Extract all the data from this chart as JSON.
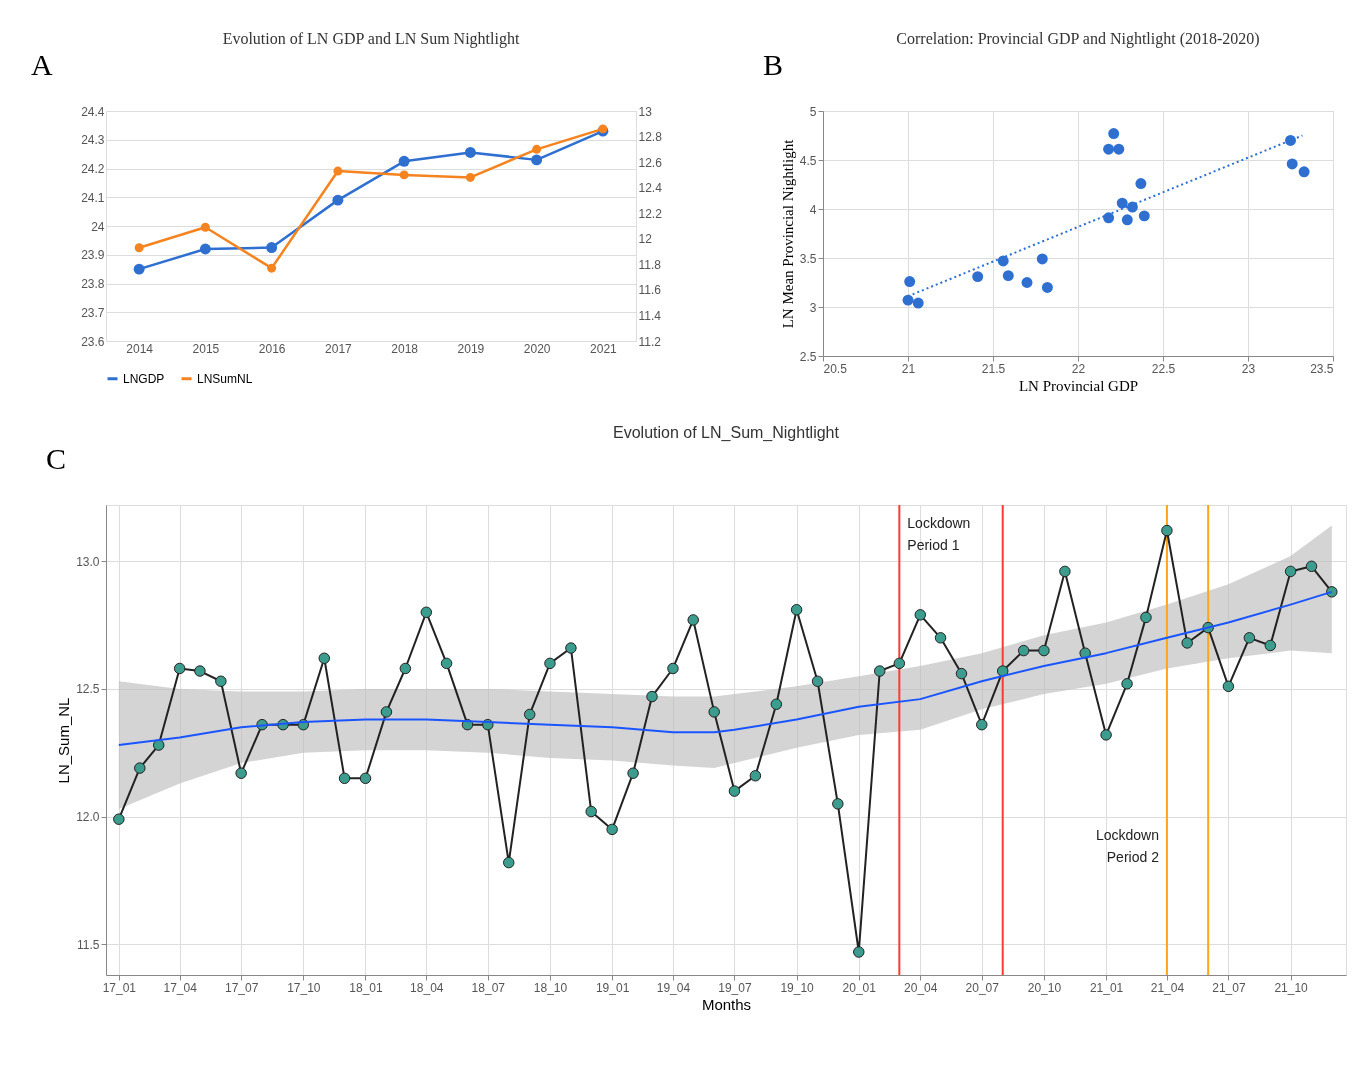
{
  "chart_data": [
    {
      "type": "line",
      "title": "Evolution of LN GDP and LN Sum Nightlight",
      "annotations": [
        "A"
      ],
      "categories": [
        "2014",
        "2015",
        "2016",
        "2017",
        "2018",
        "2019",
        "2020",
        "2021"
      ],
      "series": [
        {
          "name": "LNGDP",
          "color": "#2e6fd0",
          "values": [
            23.85,
            23.92,
            23.925,
            24.09,
            24.225,
            24.256,
            24.23,
            24.33
          ]
        },
        {
          "name": "LNSumNL",
          "color": "#f5831f",
          "axis": "y2",
          "values": [
            11.93,
            12.09,
            11.77,
            12.53,
            12.5,
            12.48,
            12.7,
            12.86
          ]
        }
      ],
      "ylim": [
        23.6,
        24.4
      ],
      "yticks": [
        23.6,
        23.7,
        23.8,
        23.9,
        24,
        24.1,
        24.2,
        24.3,
        24.4
      ],
      "y2lim": [
        11.2,
        13
      ],
      "y2ticks": [
        11.2,
        11.4,
        11.6,
        11.8,
        12,
        12.2,
        12.4,
        12.6,
        12.8,
        13
      ],
      "grid": "y",
      "legend": "bottom",
      "marker": "circle",
      "line_style": "solid"
    },
    {
      "type": "scatter",
      "title": "Correlation: Provincial GDP and Nightlight (2018-2020)",
      "annotations": [
        "B"
      ],
      "xlabel": "LN Provincial GDP",
      "ylabel": "LN Mean Provincial Nightlight",
      "series": [
        {
          "color": "#2e6fd0",
          "x": [
            21.01,
            21.0,
            21.06,
            21.41,
            21.56,
            21.59,
            21.7,
            21.79,
            21.82,
            22.18,
            22.21,
            22.24,
            22.18,
            22.26,
            22.29,
            22.32,
            22.37,
            22.39,
            23.25,
            23.26,
            23.33
          ],
          "values": [
            3.26,
            3.07,
            3.04,
            3.31,
            3.47,
            3.32,
            3.25,
            3.49,
            3.2,
            4.61,
            4.77,
            4.61,
            3.91,
            4.06,
            3.89,
            4.02,
            4.26,
            3.93,
            4.7,
            4.46,
            4.38
          ]
        },
        {
          "type": "line",
          "color": "#2e6fd0",
          "line_style": "dotted",
          "marker": "none",
          "x": [
            21.0,
            23.32
          ],
          "values": [
            3.11,
            4.75
          ]
        }
      ],
      "xlim": [
        20.5,
        23.5
      ],
      "xticks": [
        20.5,
        21,
        21.5,
        22,
        22.5,
        23,
        23.5
      ],
      "ylim": [
        2.5,
        5
      ],
      "yticks": [
        2.5,
        3,
        3.5,
        4,
        4.5,
        5
      ],
      "grid": true,
      "marker": "circle"
    },
    {
      "type": "line",
      "title": "Evolution of LN_Sum_Nightlight",
      "xlabel": "Months",
      "ylabel": "LN_Sum_NL",
      "annotations": [
        "C"
      ],
      "series": [
        {
          "color": "#3c9d8f",
          "marker": "circle",
          "x": [
            "2017-01",
            "2017-02",
            "2017-03",
            "2017-04",
            "2017-05",
            "2017-06",
            "2017-07",
            "2017-08",
            "2017-09",
            "2017-10",
            "2017-11",
            "2017-12",
            "2018-01",
            "2018-02",
            "2018-03",
            "2018-04",
            "2018-05",
            "2018-06",
            "2018-07",
            "2018-08",
            "2018-09",
            "2018-10",
            "2018-11",
            "2018-12",
            "2019-01",
            "2019-02",
            "2019-03",
            "2019-04",
            "2019-05",
            "2019-06",
            "2019-07",
            "2019-08",
            "2019-09",
            "2019-10",
            "2019-11",
            "2019-12",
            "2020-01",
            "2020-02",
            "2020-03",
            "2020-04",
            "2020-05",
            "2020-06",
            "2020-07",
            "2020-08",
            "2020-09",
            "2020-10",
            "2020-11",
            "2020-12",
            "2021-01",
            "2021-02",
            "2021-03",
            "2021-04",
            "2021-05",
            "2021-06",
            "2021-07",
            "2021-08",
            "2021-09",
            "2021-10",
            "2021-11",
            "2021-12"
          ],
          "values": [
            11.99,
            12.19,
            12.28,
            12.58,
            12.57,
            12.53,
            12.17,
            12.36,
            12.36,
            12.36,
            12.62,
            12.15,
            12.15,
            12.41,
            12.58,
            12.8,
            12.6,
            12.36,
            12.36,
            11.82,
            12.4,
            12.6,
            12.66,
            12.02,
            11.95,
            12.17,
            12.47,
            12.58,
            12.77,
            12.41,
            12.1,
            12.16,
            12.44,
            12.81,
            12.53,
            12.05,
            11.47,
            12.57,
            12.6,
            12.79,
            12.7,
            12.56,
            12.36,
            12.57,
            12.65,
            12.65,
            12.96,
            12.64,
            12.32,
            12.52,
            12.78,
            13.12,
            12.68,
            12.74,
            12.51,
            12.7,
            12.67,
            12.96,
            12.98,
            12.88
          ]
        },
        {
          "color": "#1a55ff",
          "marker": "none",
          "x": [
            "2017-01",
            "2017-04",
            "2017-07",
            "2017-10",
            "2018-01",
            "2018-04",
            "2018-07",
            "2018-10",
            "2019-01",
            "2019-04",
            "2019-06",
            "2019-07",
            "2019-10",
            "2020-01",
            "2020-04",
            "2020-07",
            "2020-10",
            "2021-01",
            "2021-04",
            "2021-07",
            "2021-10",
            "2021-12"
          ],
          "values": [
            12.28,
            12.31,
            12.35,
            12.37,
            12.38,
            12.38,
            12.37,
            12.36,
            12.35,
            12.33,
            12.33,
            12.34,
            12.38,
            12.43,
            12.46,
            12.53,
            12.59,
            12.64,
            12.7,
            12.76,
            12.83,
            12.88
          ],
          "lower": [
            12.03,
            12.13,
            12.21,
            12.25,
            12.26,
            12.26,
            12.25,
            12.23,
            12.22,
            12.2,
            12.19,
            12.21,
            12.27,
            12.32,
            12.34,
            12.42,
            12.48,
            12.52,
            12.58,
            12.62,
            12.65,
            12.64
          ],
          "upper": [
            12.53,
            12.5,
            12.49,
            12.49,
            12.5,
            12.5,
            12.5,
            12.49,
            12.48,
            12.47,
            12.47,
            12.48,
            12.51,
            12.55,
            12.59,
            12.64,
            12.71,
            12.76,
            12.83,
            12.91,
            13.02,
            13.14
          ]
        }
      ],
      "xlim": [
        "2016-12-13",
        "2021-12-22"
      ],
      "xticks": [
        {
          "value": "2017-01",
          "label": "17_01"
        },
        {
          "value": "2017-04",
          "label": "17_04"
        },
        {
          "value": "2017-07",
          "label": "17_07"
        },
        {
          "value": "2017-10",
          "label": "17_10"
        },
        {
          "value": "2018-01",
          "label": "18_01"
        },
        {
          "value": "2018-04",
          "label": "18_04"
        },
        {
          "value": "2018-07",
          "label": "18_07"
        },
        {
          "value": "2018-10",
          "label": "18_10"
        },
        {
          "value": "2019-01",
          "label": "19_01"
        },
        {
          "value": "2019-04",
          "label": "19_04"
        },
        {
          "value": "2019-07",
          "label": "19_07"
        },
        {
          "value": "2019-10",
          "label": "19_10"
        },
        {
          "value": "2020-01",
          "label": "20_01"
        },
        {
          "value": "2020-04",
          "label": "20_04"
        },
        {
          "value": "2020-07",
          "label": "20_07"
        },
        {
          "value": "2020-10",
          "label": "20_10"
        },
        {
          "value": "2021-01",
          "label": "21_01"
        },
        {
          "value": "2021-04",
          "label": "21_04"
        },
        {
          "value": "2021-07",
          "label": "21_07"
        },
        {
          "value": "2021-10",
          "label": "21_10"
        }
      ],
      "ylim": [
        11.38,
        13.22
      ],
      "yticks": [
        {
          "value": 11.5,
          "label": "11.5"
        },
        {
          "value": 12,
          "label": "12.0"
        },
        {
          "value": 12.5,
          "label": "12.5"
        },
        {
          "value": 13,
          "label": "13.0"
        }
      ],
      "ref_lines": [
        {
          "axis": "x",
          "value": "2020-03",
          "color": "#ff3b30",
          "label": "Lockdown\nPeriod 1"
        },
        {
          "axis": "x",
          "value": "2020-08",
          "color": "#ff3b30"
        },
        {
          "axis": "x",
          "value": "2021-04",
          "color": "#ffa61a",
          "label": "Lockdown\nPeriod 2"
        },
        {
          "axis": "x",
          "value": "2021-06",
          "color": "#ffa61a"
        }
      ],
      "grid": true,
      "line_style": "solid"
    }
  ]
}
